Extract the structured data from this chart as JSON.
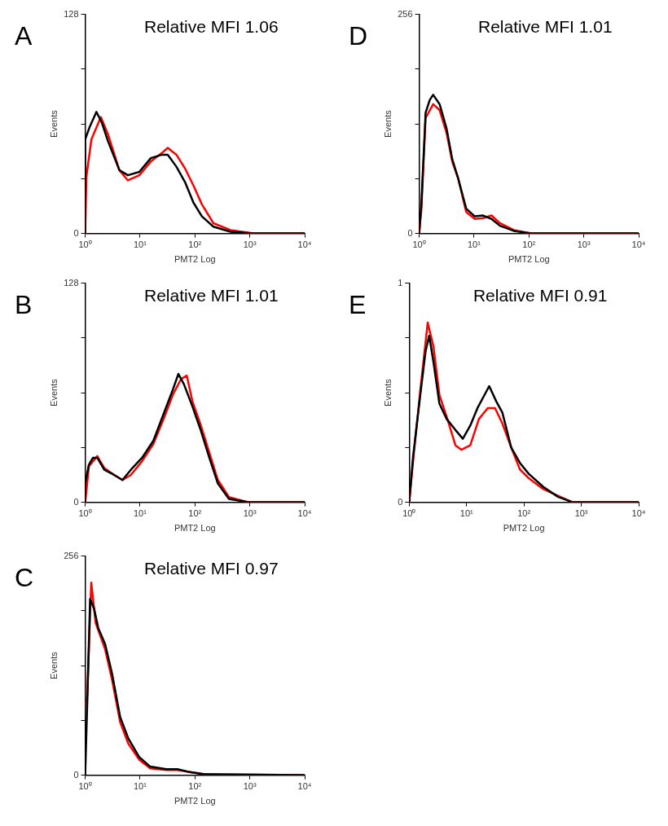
{
  "chart_data": [
    {
      "type": "line",
      "title": "Relative MFI 1.06",
      "annotations": [
        "A"
      ],
      "xlabel": "PMT2 Log",
      "ylabel": "Events",
      "log": "x",
      "grid": false,
      "legend": false,
      "marker": "none",
      "xlim": [
        1,
        10000
      ],
      "xticks": [
        {
          "value": 1,
          "label": "10⁰"
        },
        {
          "value": 10,
          "label": "10¹"
        },
        {
          "value": 100,
          "label": "10²"
        },
        {
          "value": 1000,
          "label": "10³"
        },
        {
          "value": 10000,
          "label": "10⁴"
        }
      ],
      "ylim": [
        0,
        128
      ],
      "yticks": [
        0,
        {
          "value": 32,
          "label": null
        },
        {
          "value": 64,
          "label": null
        },
        {
          "value": 96,
          "label": null
        },
        128
      ],
      "series": [
        {
          "color": "#ff0000",
          "x": [
            1,
            1.05,
            1.3,
            1.93,
            2.6,
            4.2,
            6,
            9.7,
            15.7,
            25,
            32,
            46,
            66,
            94,
            134,
            217,
            445,
            1150,
            10000
          ],
          "values": [
            0,
            33,
            55,
            68,
            58,
            37,
            31,
            34,
            42,
            47,
            50,
            46,
            38,
            28,
            17,
            6,
            2,
            0,
            0
          ]
        },
        {
          "color": "#000000",
          "x": [
            1,
            1,
            1.2,
            1.6,
            2,
            2.6,
            4.2,
            6,
            9.7,
            15.7,
            25,
            32,
            46,
            66,
            94,
            134,
            217,
            445,
            1150,
            10000
          ],
          "values": [
            0,
            55,
            62,
            71,
            65,
            54,
            37,
            34,
            36,
            44,
            46,
            46,
            39,
            30,
            18,
            10,
            4,
            1,
            0,
            0
          ]
        }
      ]
    },
    {
      "type": "line",
      "title": "Relative MFI 1.01",
      "annotations": [
        "D"
      ],
      "xlabel": "PMT2 Log",
      "ylabel": "Events",
      "log": "x",
      "grid": false,
      "legend": false,
      "marker": "none",
      "xlim": [
        1,
        10000
      ],
      "xticks": [
        {
          "value": 1,
          "label": "10⁰"
        },
        {
          "value": 10,
          "label": "10¹"
        },
        {
          "value": 100,
          "label": "10²"
        },
        {
          "value": 1000,
          "label": "10³"
        },
        {
          "value": 10000,
          "label": "10⁴"
        }
      ],
      "ylim": [
        0,
        256
      ],
      "yticks": [
        0,
        {
          "value": 64,
          "label": null
        },
        {
          "value": 128,
          "label": null
        },
        {
          "value": 192,
          "label": null
        },
        256
      ],
      "series": [
        {
          "color": "#ff0000",
          "x": [
            1,
            1.1,
            1.31,
            1.8,
            2.36,
            3.17,
            4,
            5.1,
            7.2,
            10.3,
            14.6,
            20.8,
            29.6,
            53,
            108,
            10000
          ],
          "values": [
            0,
            30,
            135,
            151,
            144,
            117,
            84,
            65,
            25,
            17,
            18,
            21,
            12,
            4,
            0,
            0
          ]
        },
        {
          "color": "#000000",
          "x": [
            1,
            1.1,
            1.31,
            1.56,
            1.8,
            2.36,
            3.17,
            4,
            5.1,
            7.2,
            10.3,
            14.6,
            20.8,
            29.6,
            53,
            108,
            10000
          ],
          "values": [
            0,
            36,
            141,
            156,
            162,
            151,
            122,
            87,
            65,
            29,
            20,
            21,
            17,
            9,
            3,
            0,
            0
          ]
        }
      ]
    },
    {
      "type": "line",
      "title": "Relative MFI 1.01",
      "annotations": [
        "B"
      ],
      "xlabel": "PMT2 Log",
      "ylabel": "Events",
      "log": "x",
      "grid": false,
      "legend": false,
      "marker": "none",
      "xlim": [
        1,
        10000
      ],
      "xticks": [
        {
          "value": 1,
          "label": "10⁰"
        },
        {
          "value": 10,
          "label": "10¹"
        },
        {
          "value": 100,
          "label": "10²"
        },
        {
          "value": 1000,
          "label": "10³"
        },
        {
          "value": 10000,
          "label": "10⁴"
        }
      ],
      "ylim": [
        0,
        128
      ],
      "yticks": [
        0,
        {
          "value": 32,
          "label": null
        },
        {
          "value": 64,
          "label": null
        },
        {
          "value": 96,
          "label": null
        },
        128
      ],
      "series": [
        {
          "color": "#ff0000",
          "x": [
            1,
            1.17,
            1.66,
            2.23,
            3.36,
            4.78,
            6.8,
            10.9,
            17.5,
            27.9,
            39.8,
            56,
            71,
            90,
            128,
            183,
            262,
            417,
            950,
            10000
          ],
          "values": [
            0,
            21,
            27,
            20,
            16,
            13,
            16,
            24,
            34,
            50,
            63,
            72,
            74,
            59,
            45,
            29,
            13,
            3,
            0,
            0
          ]
        },
        {
          "color": "#000000",
          "x": [
            1,
            1,
            1.17,
            1.39,
            1.66,
            2.23,
            3.36,
            4.78,
            6.8,
            10.9,
            17.5,
            27.9,
            39.8,
            50,
            63,
            90,
            128,
            183,
            262,
            417,
            950,
            10000
          ],
          "values": [
            0,
            11,
            22,
            26,
            26,
            19,
            16,
            13,
            19,
            26,
            36,
            53,
            66,
            75,
            69,
            56,
            42,
            26,
            11,
            2,
            0,
            0
          ]
        }
      ]
    },
    {
      "type": "line",
      "title": "Relative MFI 0.91",
      "annotations": [
        "E"
      ],
      "xlabel": "PMT2 Log",
      "ylabel": "Events",
      "log": "x",
      "grid": false,
      "legend": false,
      "marker": "none",
      "xlim": [
        1,
        10000
      ],
      "xticks": [
        {
          "value": 1,
          "label": "10⁰"
        },
        {
          "value": 10,
          "label": "10¹"
        },
        {
          "value": 100,
          "label": "10²"
        },
        {
          "value": 1000,
          "label": "10³"
        },
        {
          "value": 10000,
          "label": "10⁴"
        }
      ],
      "ylim": [
        0,
        1
      ],
      "yticks": [
        0,
        {
          "value": 0.25,
          "label": null
        },
        {
          "value": 0.5,
          "label": null
        },
        {
          "value": 0.75,
          "label": null
        },
        1
      ],
      "series": [
        {
          "color": "#ff0000",
          "x": [
            1,
            1.17,
            1.56,
            2.1,
            2.65,
            3.36,
            4.5,
            6.4,
            8.1,
            11.6,
            16.4,
            23.4,
            31.3,
            42,
            60,
            85,
            121,
            218,
            392,
            707,
            10000
          ],
          "values": [
            0,
            0.19,
            0.51,
            0.82,
            0.71,
            0.49,
            0.39,
            0.26,
            0.24,
            0.26,
            0.38,
            0.43,
            0.43,
            0.36,
            0.25,
            0.15,
            0.11,
            0.06,
            0.03,
            0,
            0
          ]
        },
        {
          "color": "#000000",
          "x": [
            1,
            1.17,
            1.56,
            1.93,
            2.23,
            2.65,
            3.36,
            4.5,
            6.4,
            8.6,
            11.6,
            15.5,
            19.6,
            24.8,
            33,
            42,
            60,
            85,
            121,
            218,
            392,
            707,
            10000
          ],
          "values": [
            0,
            0.21,
            0.49,
            0.69,
            0.76,
            0.64,
            0.45,
            0.38,
            0.33,
            0.29,
            0.35,
            0.43,
            0.48,
            0.53,
            0.46,
            0.41,
            0.25,
            0.18,
            0.13,
            0.07,
            0.025,
            0,
            0
          ]
        }
      ]
    },
    {
      "type": "line",
      "title": "Relative MFI 0.97",
      "annotations": [
        "C"
      ],
      "xlabel": "PMT2 Log",
      "ylabel": "Events",
      "log": "x",
      "grid": false,
      "legend": false,
      "marker": "none",
      "xlim": [
        1,
        10000
      ],
      "xticks": [
        {
          "value": 1,
          "label": "10⁰"
        },
        {
          "value": 10,
          "label": "10¹"
        },
        {
          "value": 100,
          "label": "10²"
        },
        {
          "value": 1000,
          "label": "10³"
        },
        {
          "value": 10000,
          "label": "10⁴"
        }
      ],
      "ylim": [
        0,
        256
      ],
      "yticks": [
        0,
        {
          "value": 64,
          "label": null
        },
        {
          "value": 128,
          "label": null
        },
        {
          "value": 192,
          "label": null
        },
        256
      ],
      "series": [
        {
          "color": "#ff0000",
          "x": [
            1,
            1.09,
            1.29,
            1.55,
            2.31,
            3.08,
            4.34,
            6.1,
            9.7,
            15.3,
            30,
            48,
            76,
            150,
            10000
          ],
          "values": [
            81,
            93,
            225,
            178,
            147,
            112,
            62,
            37,
            18,
            8,
            6,
            6,
            4,
            1,
            0
          ]
        },
        {
          "color": "#000000",
          "x": [
            1,
            1.1,
            1.23,
            1.46,
            1.73,
            2.31,
            3.08,
            4.34,
            6.1,
            9.7,
            15.3,
            30,
            48,
            76,
            150,
            10000
          ],
          "values": [
            0,
            93,
            206,
            194,
            172,
            153,
            119,
            68,
            43,
            21,
            10,
            7,
            7,
            4,
            1,
            0
          ]
        }
      ]
    }
  ]
}
